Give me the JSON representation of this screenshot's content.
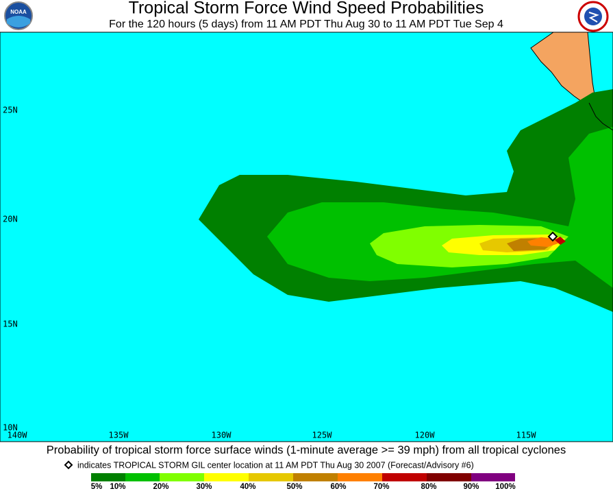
{
  "header": {
    "title": "Tropical Storm Force Wind Speed Probabilities",
    "subtitle": "For the 120 hours (5 days) from 11 AM PDT Thu Aug 30 to 11 AM PDT Tue Sep 4"
  },
  "map": {
    "lat_labels": [
      "25N",
      "20N",
      "15N",
      "10N"
    ],
    "lon_labels": [
      "140W",
      "135W",
      "130W",
      "125W",
      "120W",
      "115W"
    ]
  },
  "footer": {
    "caption": "Probability of tropical storm force surface winds (1-minute average >= 39 mph) from all tropical cyclones",
    "note": "indicates TROPICAL STORM GIL center location at 11 AM PDT Thu Aug 30 2007 (Forecast/Advisory #6)",
    "legend": [
      "5%",
      "10%",
      "20%",
      "30%",
      "40%",
      "50%",
      "60%",
      "70%",
      "80%",
      "90%",
      "100%"
    ]
  }
}
